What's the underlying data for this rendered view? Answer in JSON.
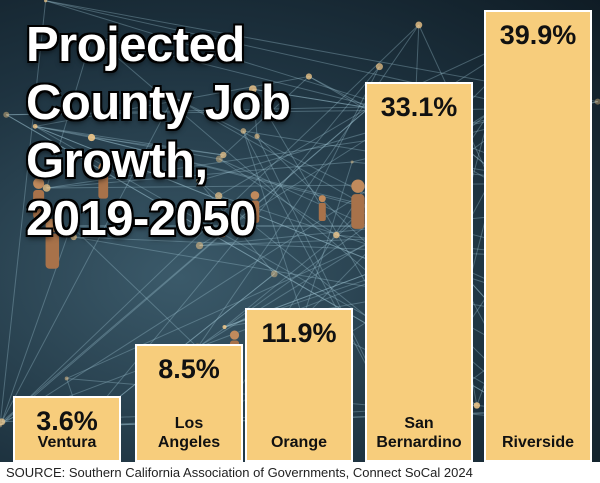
{
  "title_lines": [
    "Projected",
    "County Job",
    "Growth,",
    "2019-2050"
  ],
  "source": "SOURCE: Southern California Association of Governments, Connect SoCal 2024",
  "chart_data": {
    "type": "bar",
    "title": "Projected County Job Growth, 2019-2050",
    "categories": [
      "Ventura",
      "Los Angeles",
      "Orange",
      "San Bernardino",
      "Riverside"
    ],
    "category_lines": [
      [
        "Ventura"
      ],
      [
        "Los",
        "Angeles"
      ],
      [
        "Orange"
      ],
      [
        "San",
        "Bernardino"
      ],
      [
        "Riverside"
      ]
    ],
    "values": [
      3.6,
      8.5,
      11.9,
      33.1,
      39.9
    ],
    "value_labels": [
      "3.6%",
      "8.5%",
      "11.9%",
      "33.1%",
      "39.9%"
    ],
    "unit": "%",
    "ylim": [
      0,
      39.9
    ],
    "xlabel": "",
    "ylabel": "",
    "grid": false,
    "bar_color": "#f7cd7c",
    "bar_border_color": "#ffffff"
  }
}
